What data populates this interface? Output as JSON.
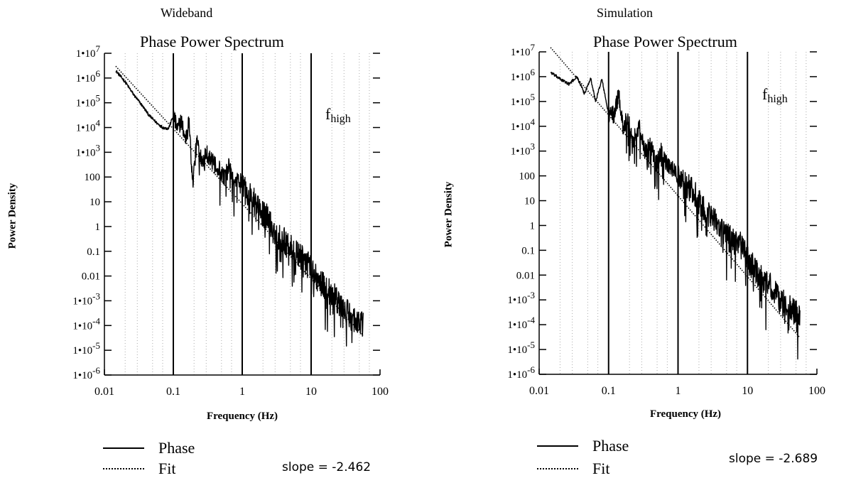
{
  "chart_data": [
    {
      "type": "line",
      "subtitle": "Wideband",
      "title": "Phase Power Spectrum",
      "xlabel": "Frequency (Hz)",
      "ylabel": "Power Density",
      "xscale": "log",
      "yscale": "log",
      "xlim": [
        0.01,
        100
      ],
      "ylim": [
        1e-06,
        10000000.0
      ],
      "x_ticks": [
        "0.01",
        "0.1",
        "1",
        "10",
        "100"
      ],
      "y_ticks": [
        "1•10^-6",
        "1•10^-5",
        "1•10^-4",
        "1•10^-3",
        "0.01",
        "0.1",
        "1",
        "10",
        "100",
        "1•10^3",
        "1•10^4",
        "1•10^5",
        "1•10^6",
        "1•10^7"
      ],
      "vertical_lines": [
        0.1,
        1,
        10
      ],
      "annotation": {
        "base": "f",
        "sub": "high"
      },
      "legend": [
        "Phase",
        "Fit"
      ],
      "slope_text": "slope = -2.462",
      "series": [
        {
          "name": "Phase",
          "style": "solid",
          "x": [
            0.0146,
            0.02,
            0.027,
            0.035,
            0.045,
            0.058,
            0.07,
            0.085,
            0.1,
            0.115,
            0.13,
            0.15,
            0.17,
            0.19,
            0.22,
            0.26,
            0.3,
            0.35,
            0.4,
            0.47,
            0.55,
            0.65,
            0.75,
            0.85,
            1.0,
            1.3,
            1.7,
            2.2,
            3.0,
            4.0,
            5.5,
            7.5,
            10,
            14,
            20,
            28,
            40,
            57
          ],
          "y": [
            2000000,
            700000,
            200000,
            80000,
            30000,
            15000,
            10000,
            9000,
            30000,
            8000,
            20000,
            3000,
            20000,
            50,
            3000,
            500,
            1000,
            500,
            300,
            200,
            100,
            300,
            50,
            100,
            50,
            20,
            5,
            3,
            0.5,
            0.3,
            0.1,
            0.05,
            0.02,
            0.005,
            0.002,
            0.0005,
            0.0002,
            0.0001
          ]
        },
        {
          "name": "Fit",
          "style": "dotted",
          "x": [
            0.0146,
            57
          ],
          "y": [
            3000000,
            4e-05
          ]
        }
      ]
    },
    {
      "type": "line",
      "subtitle": "Simulation",
      "title": "Phase Power Spectrum",
      "xlabel": "Frequency (Hz)",
      "ylabel": "Power Density",
      "xscale": "log",
      "yscale": "log",
      "xlim": [
        0.01,
        100
      ],
      "ylim": [
        1e-06,
        10000000.0
      ],
      "x_ticks": [
        "0.01",
        "0.1",
        "1",
        "10",
        "100"
      ],
      "y_ticks": [
        "1•10^-6",
        "1•10^-5",
        "1•10^-4",
        "1•10^-3",
        "0.01",
        "0.1",
        "1",
        "10",
        "100",
        "1•10^3",
        "1•10^4",
        "1•10^5",
        "1•10^6",
        "1•10^7"
      ],
      "vertical_lines": [
        0.1,
        1,
        10
      ],
      "annotation": {
        "base": "f",
        "sub": "high"
      },
      "legend": [
        "Phase",
        "Fit"
      ],
      "slope_text": "slope = -2.689",
      "series": [
        {
          "name": "Phase",
          "style": "solid",
          "x": [
            0.0146,
            0.02,
            0.027,
            0.035,
            0.045,
            0.055,
            0.065,
            0.08,
            0.1,
            0.12,
            0.14,
            0.16,
            0.19,
            0.23,
            0.28,
            0.33,
            0.4,
            0.48,
            0.57,
            0.68,
            0.8,
            1.0,
            1.3,
            1.7,
            2.2,
            3.0,
            4.0,
            5.5,
            7.5,
            10,
            14,
            20,
            28,
            40,
            57
          ],
          "y": [
            1500000,
            800000,
            500000,
            1000000,
            200000,
            900000,
            100000,
            800000,
            30000,
            30000,
            200000,
            10000,
            20000,
            3000,
            10000,
            1000,
            2000,
            300,
            1000,
            300,
            200,
            100,
            50,
            20,
            5,
            3,
            1,
            0.3,
            0.2,
            0.05,
            0.01,
            0.005,
            0.001,
            0.0005,
            0.0002
          ]
        },
        {
          "name": "Fit",
          "style": "dotted",
          "x": [
            0.0146,
            57
          ],
          "y": [
            15000000,
            3e-05
          ]
        }
      ]
    }
  ]
}
